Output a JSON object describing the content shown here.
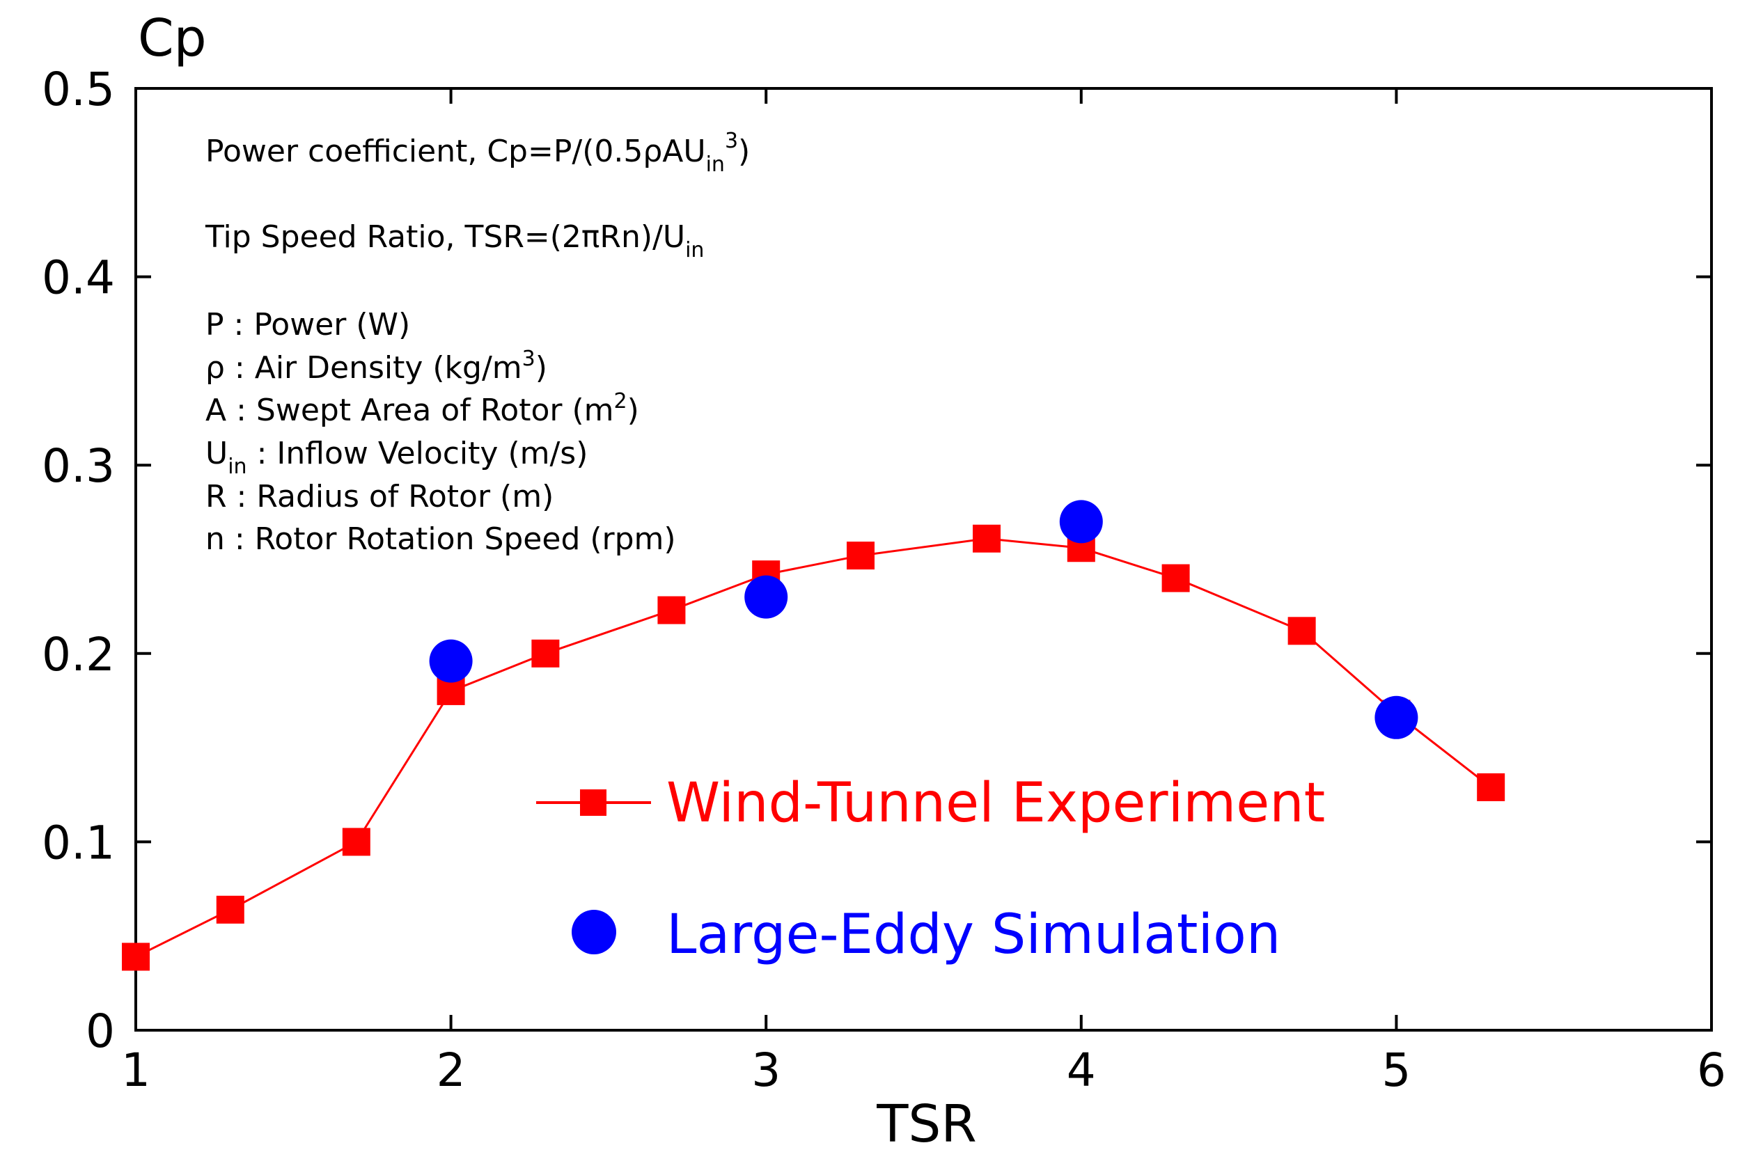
{
  "chart_data": {
    "type": "line",
    "xlabel": "TSR",
    "ylabel": "Cp",
    "xlim": [
      1,
      6
    ],
    "ylim": [
      0,
      0.5
    ],
    "xticks": [
      "1",
      "2",
      "3",
      "4",
      "5",
      "6"
    ],
    "yticks": [
      "0",
      "0.1",
      "0.2",
      "0.3",
      "0.4",
      "0.5"
    ],
    "grid": false,
    "legend_position": "lower-center",
    "colors": {
      "experiment": "#ff0000",
      "simulation": "#0000ff",
      "axis": "#000000"
    },
    "series": [
      {
        "name": "Wind-Tunnel Experiment",
        "marker": "square",
        "line": true,
        "x": [
          1.0,
          1.3,
          1.7,
          2.0,
          2.3,
          2.7,
          3.0,
          3.3,
          3.7,
          4.0,
          4.3,
          4.7,
          5.0,
          5.3
        ],
        "y": [
          0.039,
          0.064,
          0.1,
          0.18,
          0.2,
          0.223,
          0.242,
          0.252,
          0.261,
          0.256,
          0.24,
          0.212,
          0.168,
          0.129
        ]
      },
      {
        "name": "Large-Eddy Simulation",
        "marker": "circle",
        "line": false,
        "x": [
          2.0,
          3.0,
          4.0,
          5.0
        ],
        "y": [
          0.196,
          0.23,
          0.27,
          0.166
        ]
      }
    ],
    "annotations": {
      "power_coeff": {
        "prefix": "Power coefficient, Cp=P/(0.5ρAU",
        "sub": "in",
        "sup": "3",
        "suffix": ")"
      },
      "tsr_def": {
        "prefix": "Tip Speed Ratio, TSR=(2πRn)/U",
        "sub": "in"
      },
      "p_def": "P : Power (W)",
      "rho_def": {
        "prefix": "ρ : Air Density (kg/m",
        "sup": "3",
        "suffix": ")"
      },
      "a_def": {
        "prefix": "A : Swept Area of Rotor (m",
        "sup": "2",
        "suffix": ")"
      },
      "uin_def": {
        "prefix": "U",
        "sub": "in",
        "suffix": " : Inflow Velocity (m/s)"
      },
      "r_def": "R : Radius of Rotor (m)",
      "n_def": "n : Rotor Rotation Speed (rpm)"
    }
  }
}
